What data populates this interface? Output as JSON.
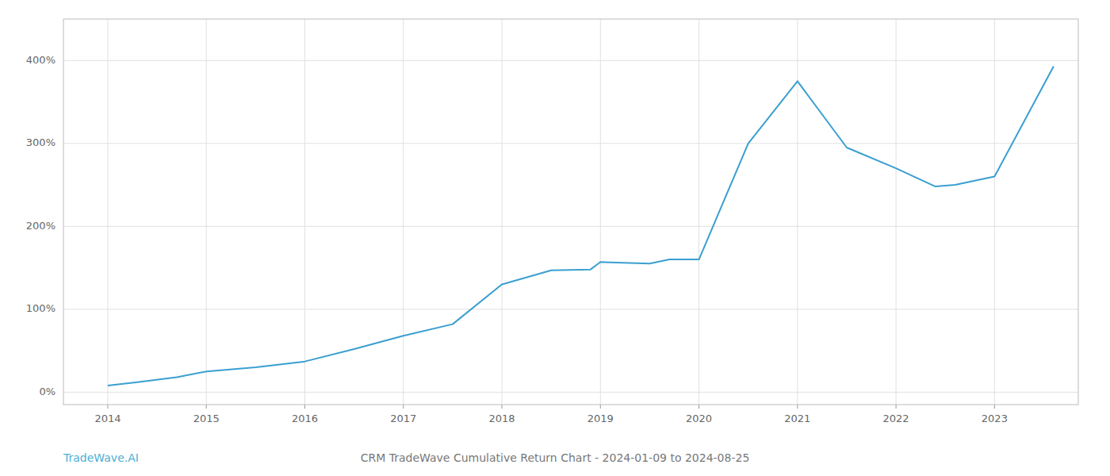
{
  "chart_data": {
    "type": "line",
    "title": "CRM TradeWave Cumulative Return Chart - 2024-01-09 to 2024-08-25",
    "annotations": [
      "TradeWave.AI"
    ],
    "x": [
      2014.0,
      2014.3,
      2014.7,
      2015.0,
      2015.5,
      2016.0,
      2016.5,
      2017.0,
      2017.5,
      2018.0,
      2018.5,
      2018.9,
      2019.0,
      2019.5,
      2019.7,
      2020.0,
      2020.5,
      2021.0,
      2021.5,
      2022.0,
      2022.4,
      2022.6,
      2023.0,
      2023.6
    ],
    "values": [
      8,
      12,
      18,
      25,
      30,
      37,
      52,
      68,
      82,
      130,
      147,
      148,
      157,
      155,
      160,
      160,
      300,
      375,
      295,
      270,
      248,
      250,
      260,
      393
    ],
    "color": "#3a9fd0",
    "xlim": [
      2013.55,
      2023.85
    ],
    "xticks": [
      2014,
      2015,
      2016,
      2017,
      2018,
      2019,
      2020,
      2021,
      2022,
      2023
    ],
    "ylim": [
      -15,
      450
    ],
    "yticks": [
      {
        "value": 0,
        "label": "0%"
      },
      {
        "value": 100,
        "label": "100%"
      },
      {
        "value": 200,
        "label": "200%"
      },
      {
        "value": 300,
        "label": "300%"
      },
      {
        "value": 400,
        "label": "400%"
      }
    ],
    "grid": true
  }
}
